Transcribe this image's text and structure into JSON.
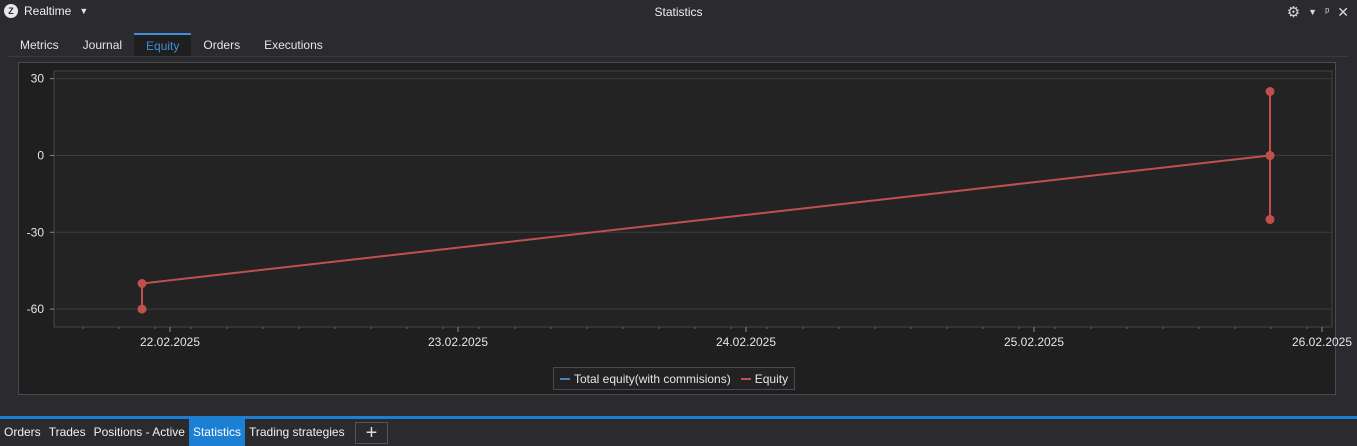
{
  "window": {
    "mode": "Realtime",
    "title": "Statistics",
    "icons": [
      "app-logo-icon",
      "caret-down-icon",
      "gear-icon",
      "pin-icon",
      "close-icon"
    ]
  },
  "tabs": [
    {
      "label": "Metrics",
      "active": false
    },
    {
      "label": "Journal",
      "active": false
    },
    {
      "label": "Equity",
      "active": true
    },
    {
      "label": "Orders",
      "active": false
    },
    {
      "label": "Executions",
      "active": false
    }
  ],
  "chart_data": {
    "type": "line",
    "title": "",
    "xlabel": "",
    "ylabel": "",
    "x_ticks": [
      "22.02.2025",
      "23.02.2025",
      "24.02.2025",
      "25.02.2025",
      "26.02.2025"
    ],
    "y_ticks": [
      "30",
      "0",
      "-30",
      "-60"
    ],
    "ylim": [
      -67,
      33
    ],
    "grid": true,
    "legend_placement": "bottom-center",
    "series": [
      {
        "name": "Total equity(with commisions)",
        "color": "#4a7fc1",
        "points": []
      },
      {
        "name": "Equity",
        "color": "#c0504d",
        "points": [
          {
            "x": "21.02.2025 21:40",
            "y": -60
          },
          {
            "x": "21.02.2025 21:40",
            "y": -50
          },
          {
            "x": "25.02.2025 19:40",
            "y": 0
          },
          {
            "x": "25.02.2025 19:40",
            "y": 25
          },
          {
            "x": "25.02.2025 19:40",
            "y": 0
          },
          {
            "x": "25.02.2025 19:40",
            "y": -25
          }
        ]
      }
    ]
  },
  "bottom_tabs": [
    {
      "label": "Orders",
      "active": false
    },
    {
      "label": "Trades",
      "active": false
    },
    {
      "label": "Positions - Active",
      "active": false
    },
    {
      "label": "Statistics",
      "active": true
    },
    {
      "label": "Trading strategies",
      "active": false
    }
  ],
  "add_tab_label": "+"
}
